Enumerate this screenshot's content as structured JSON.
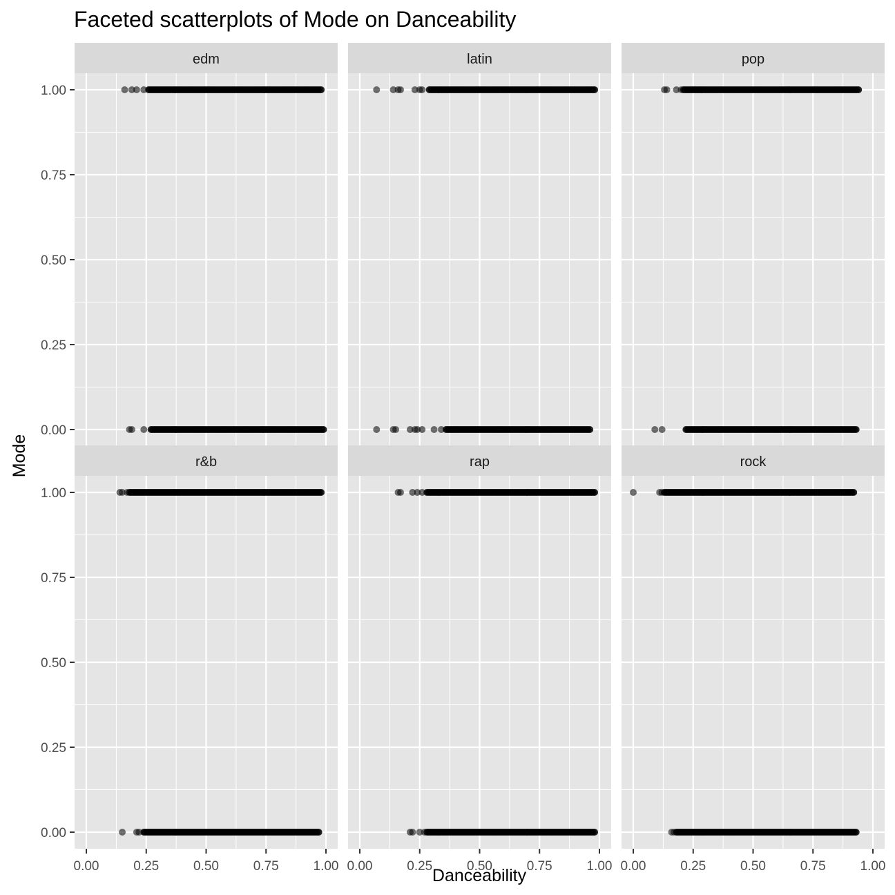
{
  "chart_data": {
    "type": "scatter",
    "title": "Faceted scatterplots of Mode on Danceability",
    "xlabel": "Danceability",
    "ylabel": "Mode",
    "xlim": [
      0,
      1
    ],
    "ylim": [
      0,
      1
    ],
    "x_ticks": [
      "0.00",
      "0.25",
      "0.50",
      "0.75",
      "1.00"
    ],
    "y_ticks": [
      "0.00",
      "0.25",
      "0.50",
      "0.75",
      "1.00"
    ],
    "grid": true,
    "colors": {
      "panel_bg": "#e5e5e5",
      "strip_bg": "#d9d9d9",
      "grid": "#ffffff",
      "point": "#000000"
    },
    "facets": [
      {
        "name": "edm",
        "series": [
          {
            "y": 1,
            "sparse": [
              0.16,
              0.19,
              0.21,
              0.24
            ],
            "dense_range": [
              0.26,
              0.98
            ]
          },
          {
            "y": 0,
            "sparse": [
              0.18,
              0.19,
              0.24
            ],
            "dense_range": [
              0.27,
              0.99
            ]
          }
        ]
      },
      {
        "name": "latin",
        "series": [
          {
            "y": 1,
            "sparse": [
              0.07,
              0.14,
              0.16,
              0.17,
              0.23,
              0.25,
              0.26
            ],
            "dense_range": [
              0.29,
              0.98
            ]
          },
          {
            "y": 0,
            "sparse": [
              0.07,
              0.14,
              0.15,
              0.21,
              0.23,
              0.24,
              0.26,
              0.31,
              0.34
            ],
            "dense_range": [
              0.36,
              0.96
            ]
          }
        ]
      },
      {
        "name": "pop",
        "series": [
          {
            "y": 1,
            "sparse": [
              0.13,
              0.14,
              0.18,
              0.2
            ],
            "dense_range": [
              0.21,
              0.94
            ]
          },
          {
            "y": 0,
            "sparse": [
              0.09,
              0.12
            ],
            "dense_range": [
              0.22,
              0.93
            ]
          }
        ]
      },
      {
        "name": "r&b",
        "series": [
          {
            "y": 1,
            "sparse": [
              0.14,
              0.15,
              0.17
            ],
            "dense_range": [
              0.18,
              0.98
            ]
          },
          {
            "y": 0,
            "sparse": [
              0.15,
              0.21,
              0.22
            ],
            "dense_range": [
              0.24,
              0.97
            ]
          }
        ]
      },
      {
        "name": "rap",
        "series": [
          {
            "y": 1,
            "sparse": [
              0.16,
              0.17,
              0.22,
              0.24,
              0.26
            ],
            "dense_range": [
              0.28,
              0.98
            ]
          },
          {
            "y": 0,
            "sparse": [
              0.21,
              0.22,
              0.25,
              0.27
            ],
            "dense_range": [
              0.28,
              0.98
            ]
          }
        ]
      },
      {
        "name": "rock",
        "series": [
          {
            "y": 1,
            "sparse": [
              0.0,
              0.11,
              0.12
            ],
            "dense_range": [
              0.13,
              0.92
            ]
          },
          {
            "y": 0,
            "sparse": [
              0.16,
              0.17
            ],
            "dense_range": [
              0.18,
              0.93
            ]
          }
        ]
      }
    ]
  }
}
